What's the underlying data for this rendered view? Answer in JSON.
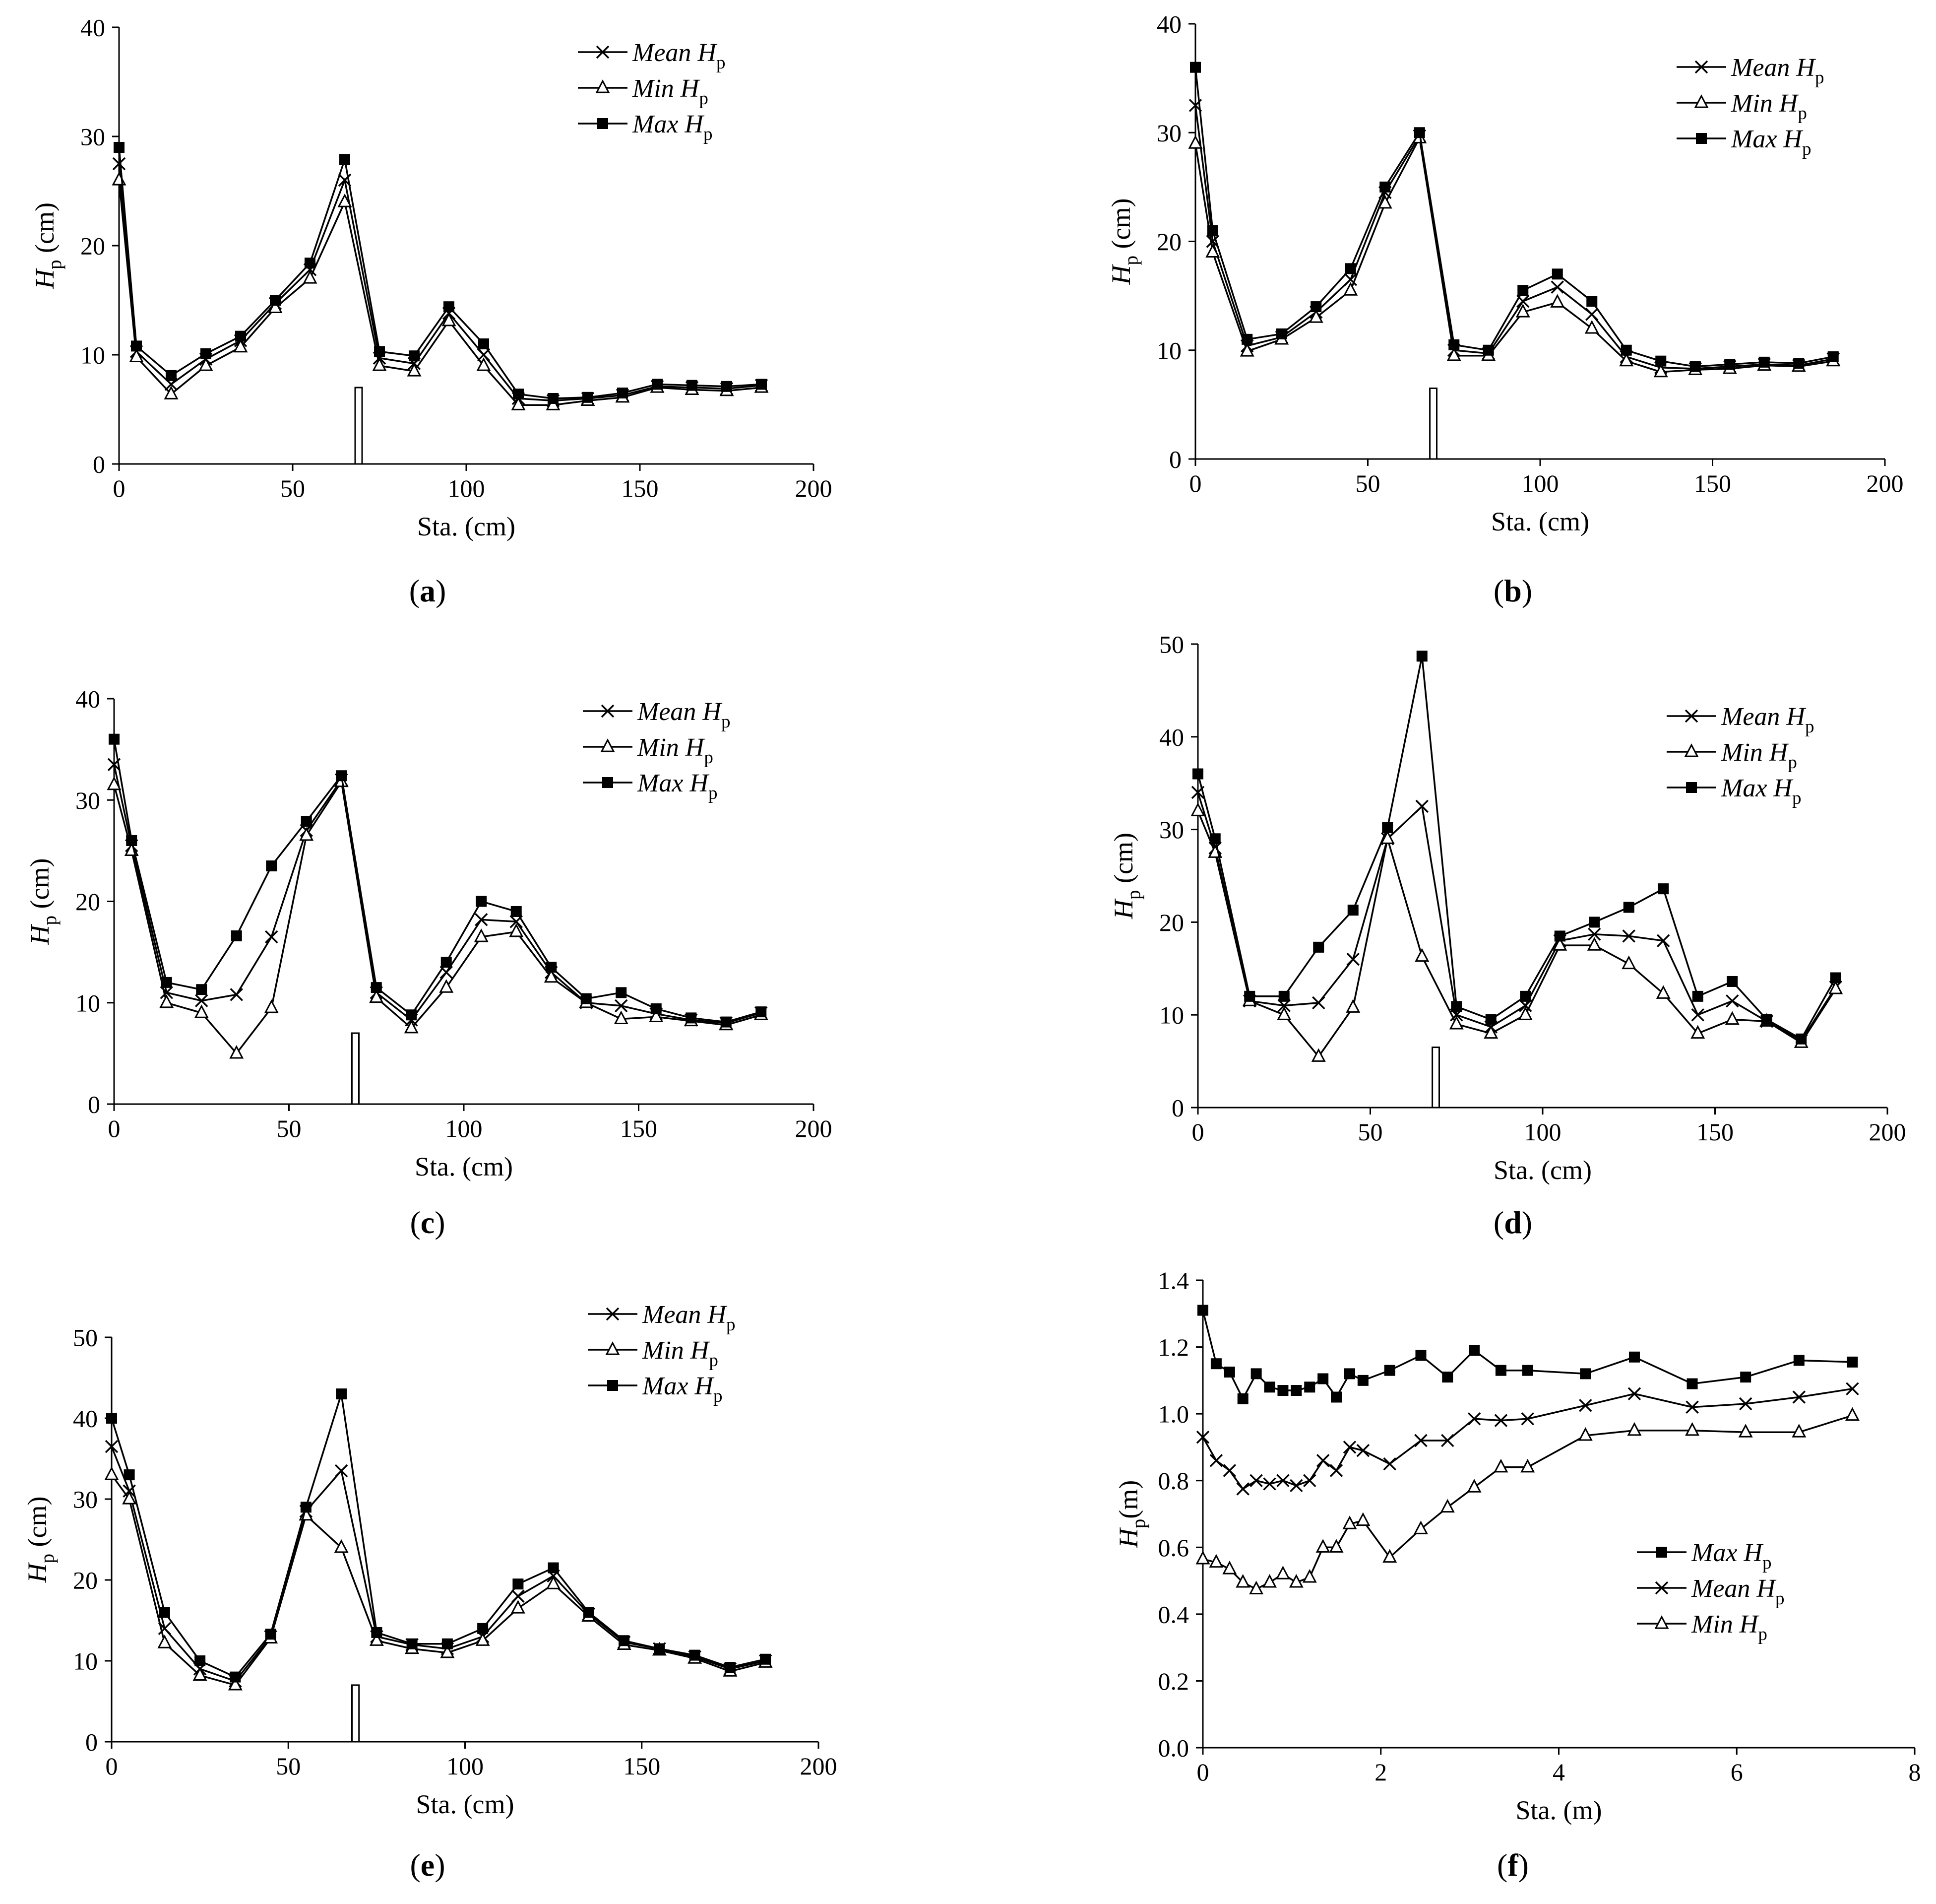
{
  "chart_data": [
    {
      "panel": "(a)",
      "panel_letter": "a",
      "type": "line",
      "xlabel": "Sta. (cm)",
      "ylabel": "H",
      "ylabel_sub": "p",
      "ylabel_unit": " (cm)",
      "xlim": [
        0,
        200
      ],
      "ylim": [
        0,
        40
      ],
      "xticks": [
        "0",
        "50",
        "100",
        "150",
        "200"
      ],
      "yticks": [
        "0",
        "10",
        "20",
        "30",
        "40"
      ],
      "x": [
        0,
        5,
        15,
        25,
        35,
        45,
        55,
        65,
        75,
        85,
        95,
        105,
        115,
        125,
        135,
        145,
        155,
        165,
        175,
        185
      ],
      "series": [
        {
          "name": "Mean H",
          "sub": "p",
          "marker": "x",
          "values": [
            27.5,
            10.3,
            7.3,
            9.6,
            11.3,
            14.7,
            17.8,
            26.0,
            9.7,
            9.2,
            13.8,
            10.0,
            6.0,
            5.8,
            6.0,
            6.3,
            7.1,
            7.0,
            6.9,
            7.2
          ]
        },
        {
          "name": "Min H",
          "sub": "p",
          "marker": "triangle",
          "values": [
            26.0,
            9.8,
            6.4,
            9.0,
            10.7,
            14.3,
            17.0,
            24.0,
            9.0,
            8.5,
            13.1,
            9.0,
            5.4,
            5.4,
            5.8,
            6.1,
            7.0,
            6.8,
            6.7,
            7.0
          ]
        },
        {
          "name": "Max H",
          "sub": "p",
          "marker": "square",
          "values": [
            29.0,
            10.8,
            8.1,
            10.1,
            11.7,
            15.0,
            18.4,
            27.9,
            10.3,
            9.9,
            14.4,
            11.0,
            6.4,
            6.0,
            6.1,
            6.5,
            7.3,
            7.2,
            7.1,
            7.3
          ]
        }
      ],
      "legend_order": [
        0,
        1,
        2
      ],
      "legend_position": "top-right",
      "structure": {
        "x": [
          68,
          70
        ],
        "height": 7
      }
    },
    {
      "panel": "(b)",
      "panel_letter": "b",
      "type": "line",
      "xlabel": "Sta. (cm)",
      "ylabel": "H",
      "ylabel_sub": "p",
      "ylabel_unit": " (cm)",
      "xlim": [
        0,
        200
      ],
      "ylim": [
        0,
        40
      ],
      "xticks": [
        "0",
        "50",
        "100",
        "150",
        "200"
      ],
      "yticks": [
        "0",
        "10",
        "20",
        "30",
        "40"
      ],
      "x": [
        0,
        5,
        15,
        25,
        35,
        45,
        55,
        65,
        75,
        85,
        95,
        105,
        115,
        125,
        135,
        145,
        155,
        165,
        175,
        185
      ],
      "series": [
        {
          "name": "Mean H",
          "sub": "p",
          "marker": "x",
          "values": [
            32.5,
            20.0,
            10.4,
            11.2,
            13.5,
            16.5,
            24.5,
            29.7,
            10.0,
            9.7,
            14.5,
            15.8,
            13.3,
            9.4,
            8.4,
            8.3,
            8.5,
            8.7,
            8.6,
            9.2
          ]
        },
        {
          "name": "Min H",
          "sub": "p",
          "marker": "triangle",
          "values": [
            29.0,
            19.0,
            9.9,
            11.0,
            13.0,
            15.5,
            23.5,
            29.5,
            9.5,
            9.5,
            13.5,
            14.4,
            12.0,
            9.0,
            8.0,
            8.2,
            8.3,
            8.6,
            8.5,
            9.0
          ]
        },
        {
          "name": "Max H",
          "sub": "p",
          "marker": "square",
          "values": [
            36.0,
            21.0,
            11.0,
            11.5,
            14.0,
            17.5,
            25.0,
            30.0,
            10.5,
            10.0,
            15.5,
            17.0,
            14.5,
            10.0,
            9.0,
            8.5,
            8.7,
            8.9,
            8.8,
            9.4
          ]
        }
      ],
      "legend_order": [
        0,
        1,
        2
      ],
      "legend_position": "top-right",
      "structure": {
        "x": [
          68,
          70
        ],
        "height": 6.5
      }
    },
    {
      "panel": "(c)",
      "panel_letter": "c",
      "type": "line",
      "xlabel": "Sta. (cm)",
      "ylabel": "H",
      "ylabel_sub": "p",
      "ylabel_unit": " (cm)",
      "xlim": [
        0,
        200
      ],
      "ylim": [
        0,
        40
      ],
      "xticks": [
        "0",
        "50",
        "100",
        "150",
        "200"
      ],
      "yticks": [
        "0",
        "10",
        "20",
        "30",
        "40"
      ],
      "x": [
        0,
        5,
        15,
        25,
        35,
        45,
        55,
        65,
        75,
        85,
        95,
        105,
        115,
        125,
        135,
        145,
        155,
        165,
        175,
        185
      ],
      "series": [
        {
          "name": "Mean H",
          "sub": "p",
          "marker": "x",
          "values": [
            33.5,
            25.5,
            11.0,
            10.2,
            10.8,
            16.5,
            27.0,
            32.0,
            11.0,
            8.3,
            13.0,
            18.2,
            18.0,
            13.0,
            10.0,
            9.7,
            8.9,
            8.3,
            8.0,
            9.0
          ]
        },
        {
          "name": "Min H",
          "sub": "p",
          "marker": "triangle",
          "values": [
            31.5,
            25.0,
            10.0,
            9.0,
            5.0,
            9.5,
            26.5,
            31.8,
            10.5,
            7.5,
            11.5,
            16.5,
            17.0,
            12.5,
            10.0,
            8.4,
            8.6,
            8.2,
            7.8,
            8.8
          ]
        },
        {
          "name": "Max H",
          "sub": "p",
          "marker": "square",
          "values": [
            36.0,
            26.0,
            12.0,
            11.3,
            16.6,
            23.5,
            27.9,
            32.4,
            11.5,
            8.8,
            14.0,
            20.0,
            19.0,
            13.5,
            10.4,
            11.0,
            9.4,
            8.5,
            8.1,
            9.1
          ]
        }
      ],
      "legend_order": [
        0,
        1,
        2
      ],
      "legend_position": "top-right",
      "structure": {
        "x": [
          68,
          70
        ],
        "height": 7
      }
    },
    {
      "panel": "(d)",
      "panel_letter": "d",
      "type": "line",
      "xlabel": "Sta. (cm)",
      "ylabel": "H",
      "ylabel_sub": "p",
      "ylabel_unit": " (cm)",
      "xlim": [
        0,
        200
      ],
      "ylim": [
        0,
        50
      ],
      "xticks": [
        "0",
        "50",
        "100",
        "150",
        "200"
      ],
      "yticks": [
        "0",
        "10",
        "20",
        "30",
        "40",
        "50"
      ],
      "x": [
        0,
        5,
        15,
        25,
        35,
        45,
        55,
        65,
        75,
        85,
        95,
        105,
        115,
        125,
        135,
        145,
        155,
        165,
        175,
        185
      ],
      "series": [
        {
          "name": "Mean H",
          "sub": "p",
          "marker": "x",
          "values": [
            34.0,
            28.0,
            11.5,
            11.0,
            11.3,
            16.0,
            29.0,
            32.5,
            10.0,
            8.7,
            11.0,
            18.0,
            18.7,
            18.5,
            18.0,
            10.0,
            11.5,
            9.3,
            7.2,
            13.0
          ]
        },
        {
          "name": "Min H",
          "sub": "p",
          "marker": "triangle",
          "values": [
            32.0,
            27.5,
            11.5,
            10.0,
            5.5,
            10.8,
            29.0,
            16.3,
            9.0,
            8.0,
            10.0,
            17.5,
            17.5,
            15.5,
            12.3,
            8.0,
            9.5,
            9.3,
            7.0,
            12.8
          ]
        },
        {
          "name": "Max H",
          "sub": "p",
          "marker": "square",
          "values": [
            36.0,
            29.0,
            12.0,
            12.0,
            17.3,
            21.3,
            30.2,
            48.7,
            10.9,
            9.5,
            12.0,
            18.5,
            20.0,
            21.6,
            23.6,
            12.0,
            13.6,
            9.5,
            7.4,
            14.0
          ]
        }
      ],
      "legend_order": [
        0,
        1,
        2
      ],
      "legend_position": "top-right",
      "structure": {
        "x": [
          68,
          70
        ],
        "height": 6.5
      }
    },
    {
      "panel": "(e)",
      "panel_letter": "e",
      "type": "line",
      "xlabel": "Sta. (cm)",
      "ylabel": "H",
      "ylabel_sub": "p",
      "ylabel_unit": " (cm)",
      "xlim": [
        0,
        200
      ],
      "ylim": [
        0,
        50
      ],
      "xticks": [
        "0",
        "50",
        "100",
        "150",
        "200"
      ],
      "yticks": [
        "0",
        "10",
        "20",
        "30",
        "40",
        "50"
      ],
      "x": [
        0,
        5,
        15,
        25,
        35,
        45,
        55,
        65,
        75,
        85,
        95,
        105,
        115,
        125,
        135,
        145,
        155,
        165,
        175,
        185
      ],
      "series": [
        {
          "name": "Mean H",
          "sub": "p",
          "marker": "x",
          "values": [
            36.5,
            31.0,
            14.0,
            9.0,
            7.5,
            13.0,
            28.5,
            33.5,
            13.0,
            12.0,
            11.5,
            13.0,
            18.0,
            20.5,
            15.8,
            12.3,
            11.5,
            10.5,
            9.0,
            10.0
          ]
        },
        {
          "name": "Min H",
          "sub": "p",
          "marker": "triangle",
          "values": [
            33.0,
            30.0,
            12.2,
            8.2,
            7.0,
            12.8,
            28.0,
            24.0,
            12.5,
            11.5,
            11.0,
            12.5,
            16.5,
            19.5,
            15.5,
            12.0,
            11.3,
            10.3,
            8.7,
            9.8
          ]
        },
        {
          "name": "Max H",
          "sub": "p",
          "marker": "square",
          "values": [
            40.0,
            33.0,
            16.0,
            10.0,
            8.0,
            13.3,
            29.0,
            43.0,
            13.5,
            12.1,
            12.1,
            14.0,
            19.5,
            21.5,
            16.0,
            12.5,
            11.5,
            10.7,
            9.2,
            10.2
          ]
        }
      ],
      "legend_order": [
        0,
        1,
        2
      ],
      "legend_position": "top-right",
      "structure": {
        "x": [
          68,
          70
        ],
        "height": 7
      }
    },
    {
      "panel": "(f)",
      "panel_letter": "f",
      "type": "line",
      "xlabel": "Sta. (m)",
      "ylabel": "H",
      "ylabel_sub": "p",
      "ylabel_unit": "(m)",
      "xlim": [
        0,
        8
      ],
      "ylim": [
        0,
        1.4
      ],
      "xticks": [
        "0",
        "2",
        "4",
        "6",
        "8"
      ],
      "yticks": [
        "0.0",
        "0.2",
        "0.4",
        "0.6",
        "0.8",
        "1.0",
        "1.2",
        "1.4"
      ],
      "x": [
        0,
        0.15,
        0.3,
        0.45,
        0.6,
        0.75,
        0.9,
        1.05,
        1.2,
        1.35,
        1.5,
        1.65,
        1.8,
        2.1,
        2.45,
        2.75,
        3.05,
        3.35,
        3.65,
        4.3,
        4.85,
        5.5,
        6.1,
        6.7,
        7.3
      ],
      "series": [
        {
          "name": "Max H",
          "sub": "p",
          "marker": "square",
          "values": [
            1.31,
            1.15,
            1.125,
            1.045,
            1.12,
            1.08,
            1.07,
            1.07,
            1.08,
            1.105,
            1.05,
            1.12,
            1.1,
            1.13,
            1.175,
            1.11,
            1.19,
            1.13,
            1.13,
            1.12,
            1.17,
            1.09,
            1.11,
            1.16,
            1.155
          ]
        },
        {
          "name": "Mean H",
          "sub": "p",
          "marker": "x",
          "values": [
            0.93,
            0.86,
            0.83,
            0.775,
            0.8,
            0.79,
            0.8,
            0.785,
            0.8,
            0.86,
            0.83,
            0.9,
            0.89,
            0.85,
            0.92,
            0.92,
            0.985,
            0.98,
            0.985,
            1.025,
            1.06,
            1.02,
            1.03,
            1.05,
            1.075
          ]
        },
        {
          "name": "Min H",
          "sub": "p",
          "marker": "triangle",
          "values": [
            0.565,
            0.555,
            0.535,
            0.495,
            0.475,
            0.495,
            0.52,
            0.495,
            0.51,
            0.6,
            0.6,
            0.67,
            0.68,
            0.57,
            0.655,
            0.72,
            0.78,
            0.84,
            0.84,
            0.935,
            0.95,
            0.95,
            0.945,
            0.945,
            0.995
          ]
        }
      ],
      "legend_order": [
        0,
        1,
        2
      ],
      "legend_position": "bottom-right"
    }
  ]
}
